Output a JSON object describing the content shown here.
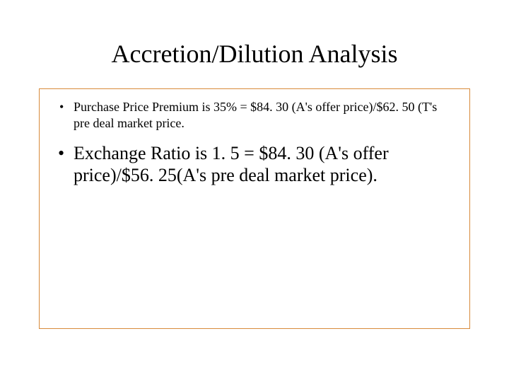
{
  "slide": {
    "title": "Accretion/Dilution Analysis",
    "border_color": "#d88a3a",
    "background_color": "#ffffff",
    "text_color": "#000000",
    "font_family": "Times New Roman",
    "bullets": [
      {
        "text": "Purchase Price Premium is 35% =  $84. 30 (A's offer price)/$62. 50 (T's pre deal market price.",
        "fontsize": 18,
        "level": "small"
      },
      {
        "text": "Exchange Ratio is 1. 5 = $84. 30 (A's offer price)/$56. 25(A's pre deal market price).",
        "fontsize": 26,
        "level": "large"
      }
    ]
  }
}
